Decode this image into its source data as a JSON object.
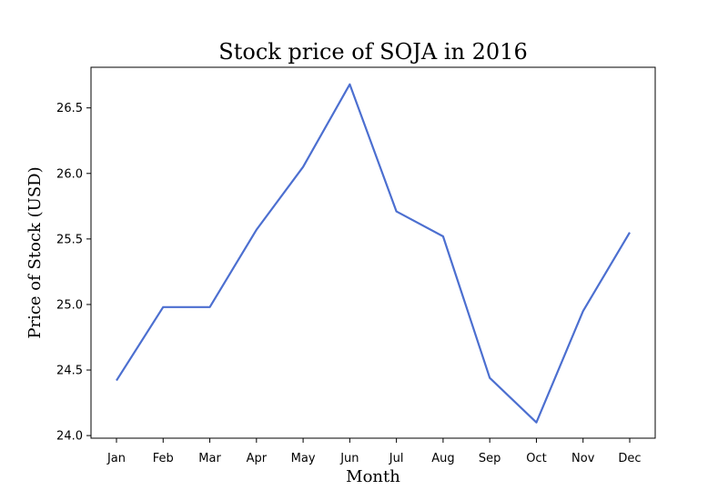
{
  "chart_data": {
    "type": "line",
    "title": "Stock price of SOJA in 2016",
    "xlabel": "Month",
    "ylabel": "Price of Stock (USD)",
    "categories": [
      "Jan",
      "Feb",
      "Mar",
      "Apr",
      "May",
      "Jun",
      "Jul",
      "Aug",
      "Sep",
      "Oct",
      "Nov",
      "Dec"
    ],
    "series": [
      {
        "values": [
          24.42,
          24.98,
          24.98,
          25.57,
          26.05,
          26.68,
          25.71,
          25.52,
          24.44,
          24.1,
          24.95,
          25.55
        ],
        "color": "#4c6fd0"
      }
    ],
    "ylim": [
      23.98,
      26.81
    ],
    "yticks": [
      24.0,
      24.5,
      25.0,
      25.5,
      26.0,
      26.5
    ],
    "ytick_labels": [
      "24.0",
      "24.5",
      "25.0",
      "25.5",
      "26.0",
      "26.5"
    ],
    "grid": false,
    "legend": "none"
  }
}
